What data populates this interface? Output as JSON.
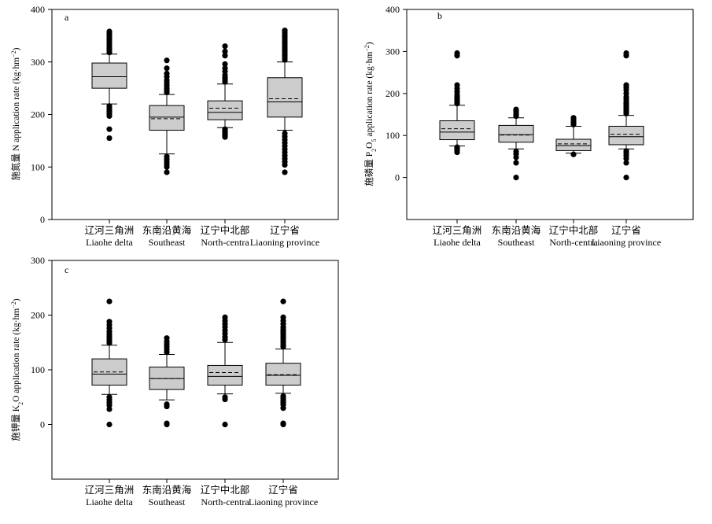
{
  "figure": {
    "categories_cn": [
      "辽河三角洲",
      "东南沿黄海",
      "辽宁中北部",
      "辽宁省"
    ],
    "categories_en": [
      "Liaohe delta",
      "Southeast",
      "North-centra",
      "Liaoning province"
    ],
    "box_fill": "#cccccc",
    "outline_color": "#000000"
  },
  "chart_data": [
    {
      "type": "box",
      "panel_label": "a",
      "ylabel": "施氮量 N application rate (kg·hm⁻²)",
      "ylabel_parts": {
        "cn": "施氮量",
        "pre": "N application rate (kg·hm",
        "sup": "−2",
        "post": ")"
      },
      "ylim": [
        0,
        400
      ],
      "yticks": [
        "0",
        "100",
        "200",
        "300",
        "400"
      ],
      "categories": [
        "Liaohe delta",
        "Southeast",
        "North-centra",
        "Liaoning province"
      ],
      "boxes": [
        {
          "whisker_low": 220,
          "q1": 250,
          "median": 272,
          "mean": 272,
          "q3": 298,
          "whisker_high": 315,
          "outliers_low": [
            155,
            172,
            197,
            201,
            205,
            208,
            212,
            216
          ],
          "outliers_high": [
            318,
            322,
            326,
            330,
            334,
            338,
            342,
            346,
            350,
            354,
            358
          ]
        },
        {
          "whisker_low": 125,
          "q1": 170,
          "median": 195,
          "mean": 192,
          "q3": 217,
          "whisker_high": 238,
          "outliers_low": [
            90,
            100,
            105,
            110,
            115,
            120
          ],
          "outliers_high": [
            242,
            246,
            250,
            255,
            260,
            265,
            272,
            278,
            288,
            303
          ]
        },
        {
          "whisker_low": 175,
          "q1": 190,
          "median": 204,
          "mean": 212,
          "q3": 226,
          "whisker_high": 258,
          "outliers_low": [
            157,
            160,
            163,
            166,
            169,
            172
          ],
          "outliers_high": [
            262,
            266,
            270,
            275,
            282,
            288,
            296,
            312,
            320,
            330
          ]
        },
        {
          "whisker_low": 170,
          "q1": 195,
          "median": 224,
          "mean": 230,
          "q3": 270,
          "whisker_high": 300,
          "outliers_low": [
            90,
            104,
            110,
            116,
            122,
            128,
            134,
            140,
            146,
            152,
            158,
            164
          ],
          "outliers_high": [
            304,
            308,
            312,
            316,
            320,
            324,
            328,
            332,
            336,
            340,
            344,
            348,
            352,
            356,
            360
          ]
        }
      ]
    },
    {
      "type": "box",
      "panel_label": "b",
      "ylabel": "施磷量 P₂O₅ application rate (kg·hm⁻²)",
      "ylabel_parts": {
        "cn": "施磷量",
        "pre": "P",
        "sub1": "2",
        "mid": "O",
        "sub2": "5",
        "pre2": " application rate (kg·hm",
        "sup": "−2",
        "post": ")"
      },
      "ylim": [
        -100,
        400
      ],
      "yticks": [
        "0",
        "100",
        "200",
        "300",
        "400"
      ],
      "categories": [
        "Liaohe delta",
        "Southeast",
        "North-centra",
        "Liaoning province"
      ],
      "boxes": [
        {
          "whisker_low": 75,
          "q1": 90,
          "median": 108,
          "mean": 116,
          "q3": 135,
          "whisker_high": 172,
          "outliers_low": [
            60,
            64,
            68,
            72
          ],
          "outliers_high": [
            176,
            180,
            184,
            188,
            192,
            197,
            204,
            212,
            220,
            290,
            296
          ]
        },
        {
          "whisker_low": 68,
          "q1": 84,
          "median": 102,
          "mean": 101,
          "q3": 124,
          "whisker_high": 142,
          "outliers_low": [
            0,
            35,
            48,
            56,
            62
          ],
          "outliers_high": [
            146,
            150,
            154,
            158,
            162
          ]
        },
        {
          "whisker_low": 58,
          "q1": 64,
          "median": 76,
          "mean": 80,
          "q3": 91,
          "whisker_high": 122,
          "outliers_low": [
            55
          ],
          "outliers_high": [
            126,
            130,
            134,
            138,
            142
          ]
        },
        {
          "whisker_low": 68,
          "q1": 78,
          "median": 97,
          "mean": 103,
          "q3": 122,
          "whisker_high": 148,
          "outliers_low": [
            0,
            35,
            45,
            52,
            58,
            63
          ],
          "outliers_high": [
            152,
            156,
            160,
            164,
            168,
            172,
            176,
            180,
            186,
            192,
            200,
            208,
            214,
            220,
            290,
            296
          ]
        }
      ]
    },
    {
      "type": "box",
      "panel_label": "c",
      "ylabel": "施钾量 K₂O application rate (kg·hm⁻²)",
      "ylabel_parts": {
        "cn": "施钾量",
        "pre": "K",
        "sub1": "2",
        "mid": "O application rate (kg·hm",
        "sup": "−2",
        "post": ")"
      },
      "ylim": [
        -100,
        300
      ],
      "yticks": [
        "0",
        "100",
        "200",
        "300"
      ],
      "categories": [
        "Liaohe delta",
        "Southeast",
        "North-centra",
        "Liaoning province"
      ],
      "boxes": [
        {
          "whisker_low": 55,
          "q1": 72,
          "median": 92,
          "mean": 96,
          "q3": 120,
          "whisker_high": 145,
          "outliers_low": [
            0,
            28,
            35,
            40,
            45,
            50
          ],
          "outliers_high": [
            149,
            153,
            157,
            161,
            165,
            170,
            176,
            182,
            188,
            225
          ]
        },
        {
          "whisker_low": 45,
          "q1": 64,
          "median": 84,
          "mean": 84,
          "q3": 105,
          "whisker_high": 128,
          "outliers_low": [
            0,
            2,
            33,
            37
          ],
          "outliers_high": [
            132,
            137,
            142,
            147,
            152,
            158
          ]
        },
        {
          "whisker_low": 56,
          "q1": 72,
          "median": 88,
          "mean": 95,
          "q3": 108,
          "whisker_high": 150,
          "outliers_low": [
            0,
            46,
            50
          ],
          "outliers_high": [
            155,
            160,
            166,
            172,
            178,
            184,
            190,
            196
          ]
        },
        {
          "whisker_low": 57,
          "q1": 72,
          "median": 90,
          "mean": 91,
          "q3": 112,
          "whisker_high": 138,
          "outliers_low": [
            0,
            2,
            30,
            36,
            40,
            44,
            48,
            52
          ],
          "outliers_high": [
            142,
            146,
            150,
            154,
            158,
            162,
            166,
            170,
            174,
            178,
            184,
            190,
            196,
            225
          ]
        }
      ]
    }
  ]
}
